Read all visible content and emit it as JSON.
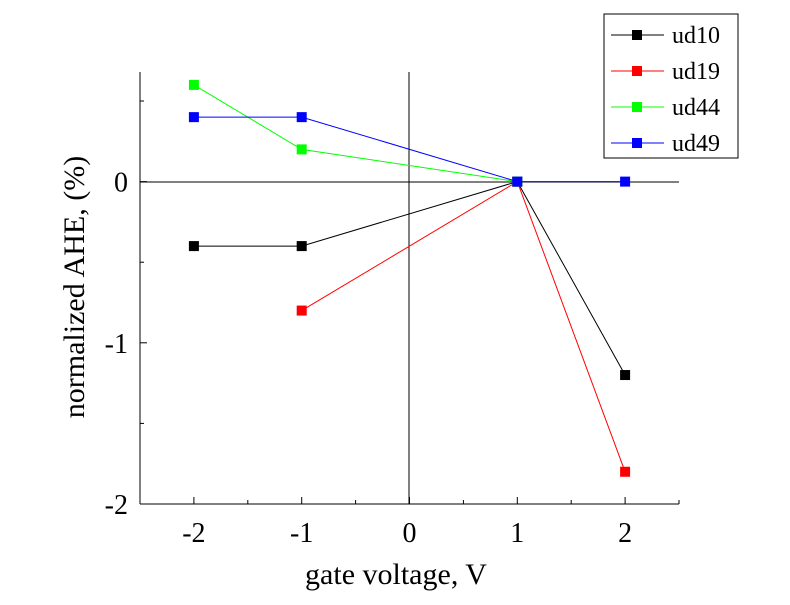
{
  "chart_data": {
    "type": "line",
    "xlabel": "gate voltage, V",
    "ylabel": "normalized AHE, (%)",
    "xlim": [
      -2.5,
      2.5
    ],
    "ylim": [
      -2.0,
      0.68
    ],
    "x_ticks": [
      -2,
      -1,
      0,
      1,
      2
    ],
    "x_tick_labels": [
      "-2",
      "-1",
      "0",
      "1",
      "2"
    ],
    "y_ticks": [
      0,
      -1,
      -2
    ],
    "y_tick_labels": [
      "0",
      "-1",
      "-2"
    ],
    "legend_position": "top-right",
    "grid": false,
    "series": [
      {
        "name": "ud10",
        "color": "#000000",
        "x": [
          -2,
          -1,
          1,
          2
        ],
        "y": [
          -0.4,
          -0.4,
          0,
          -1.2
        ]
      },
      {
        "name": "ud19",
        "color": "#ff0000",
        "x": [
          -1,
          1,
          2
        ],
        "y": [
          -0.8,
          0,
          -1.8
        ]
      },
      {
        "name": "ud44",
        "color": "#00ff00",
        "x": [
          -2,
          -1,
          1
        ],
        "y": [
          0.6,
          0.2,
          0
        ]
      },
      {
        "name": "ud49",
        "color": "#0000ff",
        "x": [
          -2,
          -1,
          1,
          2
        ],
        "y": [
          0.4,
          0.4,
          0,
          0
        ]
      }
    ]
  }
}
